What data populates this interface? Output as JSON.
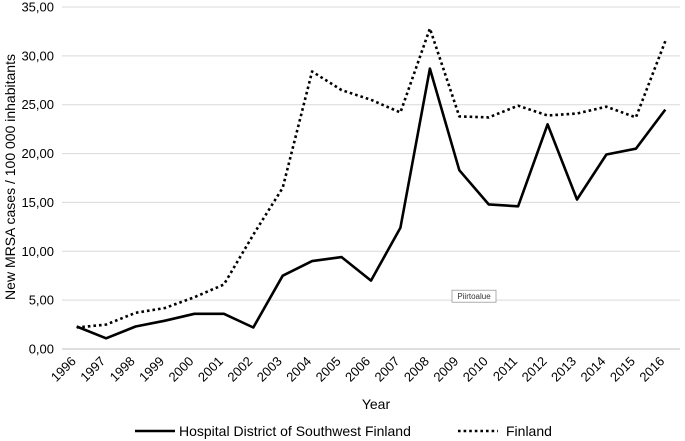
{
  "chart_data": {
    "type": "line",
    "title": "",
    "xlabel": "Year",
    "ylabel": "New MRSA cases / 100 000 inhabitants",
    "x": [
      "1996",
      "1997",
      "1998",
      "1999",
      "2000",
      "2001",
      "2002",
      "2003",
      "2004",
      "2005",
      "2006",
      "2007",
      "2008",
      "2009",
      "2010",
      "2011",
      "2012",
      "2013",
      "2014",
      "2015",
      "2016"
    ],
    "ylim": [
      0,
      35
    ],
    "yticks": [
      "0,00",
      "5,00",
      "10,00",
      "15,00",
      "20,00",
      "25,00",
      "30,00",
      "35,00"
    ],
    "grid": "horizontal",
    "legend_position": "bottom",
    "series": [
      {
        "name": "Hospital District of Southwest Finland",
        "style": "solid",
        "color": "#000000",
        "values": [
          2.3,
          1.1,
          2.3,
          2.9,
          3.6,
          3.6,
          2.2,
          7.5,
          9.0,
          9.4,
          7.0,
          12.4,
          28.7,
          18.3,
          14.8,
          14.6,
          23.0,
          15.3,
          19.9,
          20.5,
          24.5
        ]
      },
      {
        "name": "Finland",
        "style": "dotted",
        "color": "#000000",
        "values": [
          2.2,
          2.5,
          3.7,
          4.2,
          5.3,
          6.6,
          11.7,
          16.5,
          28.4,
          26.5,
          25.5,
          24.2,
          32.8,
          23.8,
          23.7,
          24.9,
          23.9,
          24.1,
          24.8,
          23.7,
          31.5
        ]
      }
    ],
    "annotations": [
      {
        "text": "Piirtoalue",
        "x_index": 13.5,
        "y": 5.3
      }
    ]
  }
}
